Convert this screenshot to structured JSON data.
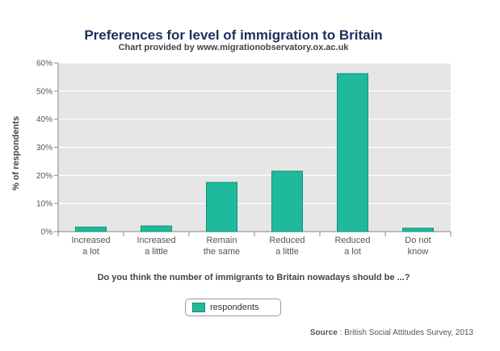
{
  "chart_data": {
    "type": "bar",
    "title": "Preferences for level of immigration to Britain",
    "subtitle": "Chart provided by www.migrationobservatory.ox.ac.uk",
    "xlabel": "Do you think the number of immigrants to Britain nowadays should be ...?",
    "ylabel": "% of respondents",
    "categories": [
      [
        "Increased",
        "a lot"
      ],
      [
        "Increased",
        "a little"
      ],
      [
        "Remain",
        "the same"
      ],
      [
        "Reduced",
        "a little"
      ],
      [
        "Reduced",
        "a lot"
      ],
      [
        "Do not",
        "know"
      ]
    ],
    "series": [
      {
        "name": "respondents",
        "values": [
          1.6,
          2.0,
          17.5,
          21.5,
          56.2,
          1.2
        ]
      }
    ],
    "ylim": [
      0,
      60
    ],
    "yticks": [
      0,
      10,
      20,
      30,
      40,
      50,
      60
    ],
    "ytick_labels": [
      "0%",
      "10%",
      "20%",
      "30%",
      "40%",
      "50%",
      "60%"
    ],
    "grid": true,
    "legend_position": "bottom-center",
    "colors": {
      "bar": "#1fb99c",
      "bar_border": "#158f78",
      "plot_bg": "#e6e6e6",
      "grid": "#ffffff",
      "title": "#222e5c"
    }
  },
  "source": {
    "label": "Source",
    "text": " : British Social Attitudes Survey, 2013"
  }
}
